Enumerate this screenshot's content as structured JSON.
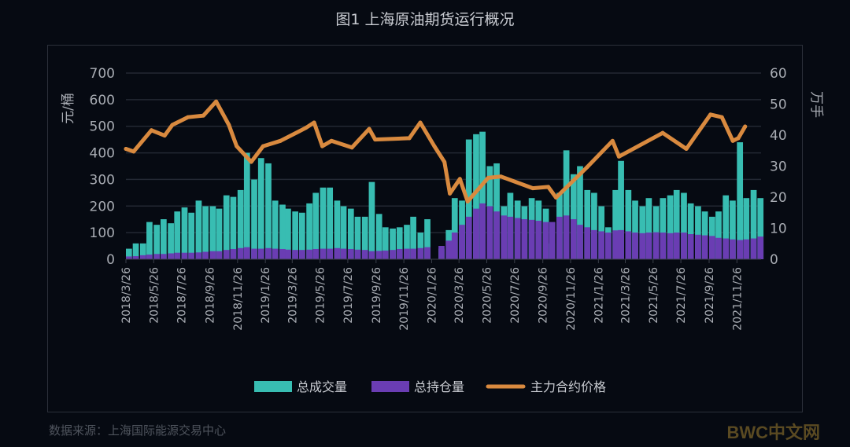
{
  "chart_data": {
    "type": "bar+line",
    "title": "图1 上海原油期货运行概况",
    "source": "数据来源：上海国际能源交易中心",
    "watermark": "BWC中文网",
    "ylabel_left": "元/桶",
    "ylabel_right": "万手",
    "ylim_left": [
      0,
      700
    ],
    "ylim_right": [
      0,
      60
    ],
    "yticks_left": [
      "0",
      "100",
      "200",
      "300",
      "400",
      "500",
      "600",
      "700"
    ],
    "yticks_right": [
      "0",
      "10",
      "20",
      "30",
      "40",
      "50",
      "60"
    ],
    "grid": true,
    "legend_position": "bottom",
    "x_range": [
      "2018-03-26",
      "2022-01-18"
    ],
    "xticks": [
      "2018/3/26",
      "2018/5/26",
      "2018/7/26",
      "2018/9/26",
      "2018/11/26",
      "2019/1/26",
      "2019/3/26",
      "2019/5/26",
      "2019/7/26",
      "2019/9/26",
      "2019/11/26",
      "2020/1/26",
      "2020/3/26",
      "2020/5/26",
      "2020/7/26",
      "2020/9/26",
      "2020/11/26",
      "2021/1/26",
      "2021/3/26",
      "2021/5/26",
      "2021/7/26",
      "2021/9/26",
      "2021/11/26"
    ],
    "colors": {
      "volume": "#38bdb2",
      "open_interest": "#6a3db3",
      "price": "#d98a3f"
    },
    "bar_dates": [
      "2018-03-26",
      "2018-04-10",
      "2018-04-26",
      "2018-05-10",
      "2018-05-26",
      "2018-06-10",
      "2018-06-26",
      "2018-07-10",
      "2018-07-26",
      "2018-08-10",
      "2018-08-26",
      "2018-09-10",
      "2018-09-26",
      "2018-10-10",
      "2018-10-26",
      "2018-11-10",
      "2018-11-26",
      "2018-12-10",
      "2018-12-26",
      "2019-01-10",
      "2019-01-26",
      "2019-02-10",
      "2019-02-26",
      "2019-03-10",
      "2019-03-26",
      "2019-04-10",
      "2019-04-26",
      "2019-05-10",
      "2019-05-26",
      "2019-06-10",
      "2019-06-26",
      "2019-07-10",
      "2019-07-26",
      "2019-08-10",
      "2019-08-26",
      "2019-09-10",
      "2019-09-26",
      "2019-10-10",
      "2019-10-26",
      "2019-11-10",
      "2019-11-26",
      "2019-12-10",
      "2019-12-26",
      "2020-01-10",
      "2020-01-26",
      "2020-02-10",
      "2020-02-26",
      "2020-03-10",
      "2020-03-26",
      "2020-04-10",
      "2020-04-26",
      "2020-05-10",
      "2020-05-26",
      "2020-06-10",
      "2020-06-26",
      "2020-07-10",
      "2020-07-26",
      "2020-08-10",
      "2020-08-26",
      "2020-09-10",
      "2020-09-26",
      "2020-10-10",
      "2020-10-26",
      "2020-11-10",
      "2020-11-26",
      "2020-12-10",
      "2020-12-26",
      "2021-01-10",
      "2021-01-26",
      "2021-02-10",
      "2021-02-26",
      "2021-03-10",
      "2021-03-26",
      "2021-04-10",
      "2021-04-26",
      "2021-05-10",
      "2021-05-26",
      "2021-06-10",
      "2021-06-26",
      "2021-07-10",
      "2021-07-26",
      "2021-08-10",
      "2021-08-26",
      "2021-09-10",
      "2021-09-26",
      "2021-10-10",
      "2021-10-26",
      "2021-11-10",
      "2021-11-26",
      "2021-12-10",
      "2021-12-26",
      "2022-01-10"
    ],
    "series": [
      {
        "name": "总成交量",
        "type": "bar",
        "axis": "right",
        "values": [
          3.4,
          5.1,
          5.1,
          12.0,
          11.1,
          12.9,
          11.6,
          15.4,
          16.7,
          15.0,
          18.9,
          17.1,
          17.1,
          16.3,
          20.6,
          20.1,
          22.3,
          34.3,
          25.7,
          32.6,
          30.9,
          18.9,
          17.6,
          16.3,
          15.4,
          15.0,
          18.0,
          21.4,
          23.1,
          23.1,
          18.9,
          17.1,
          16.3,
          13.7,
          13.7,
          24.9,
          14.6,
          10.3,
          9.9,
          10.3,
          11.1,
          13.7,
          8.6,
          12.9,
          0,
          3.4,
          9.4,
          19.7,
          18.9,
          38.6,
          40.3,
          41.1,
          30.0,
          30.9,
          17.1,
          21.4,
          18.9,
          17.1,
          19.7,
          18.9,
          16.3,
          5.1,
          21.4,
          35.1,
          27.4,
          30.0,
          22.3,
          21.4,
          17.1,
          10.3,
          22.3,
          31.7,
          22.3,
          18.9,
          17.1,
          19.7,
          17.1,
          19.7,
          20.6,
          22.3,
          21.4,
          18.0,
          17.1,
          15.4,
          13.7,
          15.4,
          20.6,
          18.9,
          37.7,
          19.7,
          22.3,
          19.7
        ]
      },
      {
        "name": "总持仓量",
        "type": "bar",
        "axis": "right",
        "values": [
          0.9,
          1.0,
          1.3,
          1.5,
          1.7,
          1.7,
          1.9,
          2.1,
          2.1,
          2.1,
          2.2,
          2.4,
          2.6,
          2.6,
          3.0,
          3.3,
          3.6,
          3.9,
          3.4,
          3.4,
          3.6,
          3.4,
          3.3,
          3.1,
          3.0,
          3.0,
          3.1,
          3.3,
          3.4,
          3.4,
          3.6,
          3.4,
          3.3,
          3.1,
          3.0,
          2.6,
          2.7,
          2.8,
          3.0,
          3.3,
          3.4,
          3.4,
          3.6,
          3.9,
          0,
          4.3,
          6.0,
          8.6,
          11.1,
          13.7,
          16.3,
          18.0,
          17.1,
          15.4,
          14.1,
          13.7,
          13.3,
          12.9,
          12.7,
          12.4,
          12.0,
          12.0,
          13.7,
          14.1,
          12.9,
          11.1,
          10.3,
          9.4,
          9.0,
          8.6,
          9.3,
          9.4,
          9.0,
          8.6,
          8.4,
          8.6,
          8.7,
          8.6,
          8.4,
          8.6,
          8.6,
          8.1,
          7.9,
          7.7,
          7.5,
          6.9,
          6.7,
          6.4,
          6.2,
          6.4,
          6.7,
          7.3
        ]
      },
      {
        "name": "主力合约价格",
        "type": "line",
        "axis": "left",
        "points": [
          [
            "2018-03-26",
            415
          ],
          [
            "2018-04-12",
            405
          ],
          [
            "2018-05-21",
            485
          ],
          [
            "2018-06-19",
            465
          ],
          [
            "2018-07-06",
            505
          ],
          [
            "2018-08-09",
            534
          ],
          [
            "2018-09-12",
            540
          ],
          [
            "2018-10-10",
            593
          ],
          [
            "2018-11-07",
            505
          ],
          [
            "2018-11-24",
            425
          ],
          [
            "2018-12-26",
            366
          ],
          [
            "2019-01-21",
            425
          ],
          [
            "2019-02-28",
            445
          ],
          [
            "2019-04-25",
            494
          ],
          [
            "2019-05-13",
            514
          ],
          [
            "2019-05-31",
            425
          ],
          [
            "2019-06-20",
            445
          ],
          [
            "2019-08-04",
            420
          ],
          [
            "2019-09-11",
            490
          ],
          [
            "2019-09-24",
            450
          ],
          [
            "2019-12-08",
            455
          ],
          [
            "2020-01-01",
            514
          ],
          [
            "2020-02-01",
            425
          ],
          [
            "2020-02-23",
            366
          ],
          [
            "2020-03-06",
            247
          ],
          [
            "2020-03-28",
            302
          ],
          [
            "2020-04-14",
            217
          ],
          [
            "2020-05-29",
            306
          ],
          [
            "2020-06-26",
            311
          ],
          [
            "2020-09-04",
            267
          ],
          [
            "2020-10-08",
            272
          ],
          [
            "2020-10-25",
            232
          ],
          [
            "2021-01-01",
            346
          ],
          [
            "2021-02-26",
            445
          ],
          [
            "2021-03-12",
            386
          ],
          [
            "2021-06-16",
            475
          ],
          [
            "2021-08-07",
            415
          ],
          [
            "2021-09-29",
            544
          ],
          [
            "2021-10-24",
            534
          ],
          [
            "2021-11-17",
            445
          ],
          [
            "2021-11-29",
            455
          ],
          [
            "2021-12-14",
            499
          ]
        ]
      }
    ]
  }
}
